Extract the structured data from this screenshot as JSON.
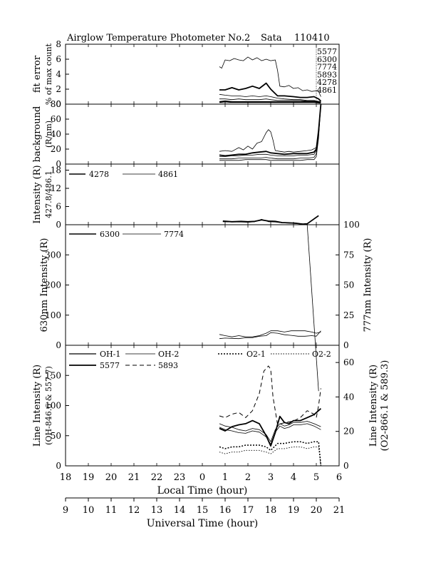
{
  "header": {
    "title": "Airglow Temperature Photometer No.2",
    "station": "Sata",
    "date": "110410"
  },
  "axes": {
    "local_time_label": "Local Time (hour)",
    "universal_time_label": "Universal Time (hour)",
    "local_ticks": [
      "18",
      "19",
      "20",
      "21",
      "22",
      "23",
      "0",
      "1",
      "2",
      "3",
      "4",
      "5",
      "6"
    ],
    "universal_ticks": [
      "9",
      "10",
      "11",
      "12",
      "13",
      "14",
      "15",
      "16",
      "17",
      "18",
      "19",
      "20",
      "21"
    ]
  },
  "chart_data": [
    {
      "type": "line",
      "panel": "fit-error",
      "ylabel": [
        "fit error",
        "% of max count"
      ],
      "ylim": [
        0,
        8
      ],
      "yticks": [
        0,
        2,
        4,
        6,
        8
      ],
      "legend": [
        "5577",
        "6300",
        "7774",
        "5893",
        "4278",
        "4861"
      ],
      "x_unit": "universal time hour",
      "series": [
        {
          "name": "5577",
          "style": "thin",
          "x": [
            15.75,
            15.85,
            16.0,
            16.2,
            16.4,
            16.6,
            16.8,
            17.0,
            17.2,
            17.4,
            17.6,
            17.8,
            18.0,
            18.2,
            18.3,
            18.4,
            18.6,
            18.8,
            19.0,
            19.2,
            19.4,
            19.6,
            19.8,
            20.0,
            20.1,
            20.2
          ],
          "y": [
            5.0,
            4.8,
            5.9,
            5.8,
            6.1,
            5.9,
            5.8,
            6.3,
            5.9,
            6.2,
            5.8,
            6.0,
            5.8,
            5.9,
            4.5,
            2.4,
            2.3,
            2.5,
            2.1,
            2.2,
            1.8,
            1.9,
            1.7,
            1.8,
            1.7,
            1.0
          ]
        },
        {
          "name": "5893",
          "style": "thick",
          "x": [
            15.75,
            16.0,
            16.3,
            16.6,
            16.9,
            17.2,
            17.5,
            17.8,
            18.0,
            18.3,
            18.6,
            19.0,
            19.3,
            19.6,
            19.9,
            20.1,
            20.2
          ],
          "y": [
            1.9,
            1.9,
            2.2,
            1.9,
            2.1,
            2.4,
            2.1,
            2.8,
            2.0,
            1.1,
            1.1,
            1.0,
            0.9,
            0.9,
            1.0,
            0.7,
            0.4
          ]
        },
        {
          "name": "6300",
          "style": "thin",
          "x": [
            15.75,
            16.0,
            16.3,
            16.6,
            16.9,
            17.2,
            17.5,
            17.8,
            18.0,
            18.3,
            18.6,
            19.0,
            19.3,
            19.6,
            19.9,
            20.2
          ],
          "y": [
            1.3,
            1.2,
            1.1,
            1.1,
            1.0,
            1.1,
            1.0,
            1.1,
            1.0,
            0.8,
            0.7,
            0.6,
            0.6,
            0.5,
            0.5,
            0.3
          ]
        },
        {
          "name": "7774",
          "style": "thin",
          "x": [
            15.75,
            16.0,
            16.3,
            16.6,
            16.9,
            17.2,
            17.5,
            17.8,
            18.0,
            18.3,
            18.6,
            19.0,
            19.3,
            19.6,
            19.9,
            20.2
          ],
          "y": [
            0.7,
            0.7,
            0.6,
            0.7,
            0.6,
            0.6,
            0.6,
            0.7,
            0.6,
            0.5,
            0.5,
            0.5,
            0.5,
            0.4,
            0.4,
            0.3
          ]
        },
        {
          "name": "4278",
          "style": "thick",
          "x": [
            15.75,
            16.0,
            16.3,
            16.6,
            16.9,
            17.2,
            17.5,
            17.8,
            18.0,
            18.3,
            18.6,
            19.0,
            19.3,
            19.6,
            19.9,
            20.2
          ],
          "y": [
            0.3,
            0.4,
            0.3,
            0.3,
            0.3,
            0.3,
            0.3,
            0.3,
            0.3,
            0.3,
            0.3,
            0.3,
            0.3,
            0.3,
            0.3,
            0.2
          ]
        },
        {
          "name": "4861",
          "style": "thin",
          "x": [
            15.75,
            16.0,
            16.3,
            16.6,
            16.9,
            17.2,
            17.5,
            17.8,
            18.0,
            18.3,
            18.6,
            19.0,
            19.3,
            19.6,
            19.9,
            20.2
          ],
          "y": [
            0.2,
            0.2,
            0.2,
            0.2,
            0.2,
            0.2,
            0.2,
            0.2,
            0.2,
            0.2,
            0.2,
            0.2,
            0.2,
            0.2,
            0.2,
            0.1
          ]
        }
      ]
    },
    {
      "type": "line",
      "panel": "background",
      "ylabel": [
        "background",
        "(R/nm)"
      ],
      "ylim": [
        0,
        80
      ],
      "yticks": [
        0,
        20,
        40,
        60,
        80
      ],
      "x_unit": "universal time hour",
      "series": [
        {
          "style": "thin",
          "x": [
            15.75,
            16.0,
            16.3,
            16.6,
            16.8,
            17.0,
            17.2,
            17.4,
            17.6,
            17.8,
            17.9,
            18.0,
            18.1,
            18.2,
            18.4,
            18.6,
            18.8,
            19.0,
            19.3,
            19.6,
            19.8,
            20.0,
            20.1,
            20.2
          ],
          "y": [
            17,
            18,
            17,
            22,
            19,
            24,
            20,
            28,
            30,
            42,
            46,
            43,
            32,
            18,
            17,
            16,
            17,
            16,
            17,
            18,
            19,
            22,
            40,
            80
          ]
        },
        {
          "style": "thick",
          "x": [
            15.75,
            16.0,
            16.3,
            16.6,
            16.9,
            17.2,
            17.5,
            17.8,
            18.0,
            18.3,
            18.6,
            19.0,
            19.3,
            19.6,
            19.9,
            20.0,
            20.1,
            20.2
          ],
          "y": [
            12,
            11,
            12,
            13,
            13,
            15,
            16,
            17,
            15,
            14,
            13,
            14,
            14,
            14,
            16,
            20,
            45,
            80
          ]
        },
        {
          "style": "thin",
          "x": [
            15.75,
            16.0,
            16.3,
            16.6,
            16.9,
            17.2,
            17.5,
            17.8,
            18.0,
            18.3,
            18.6,
            19.0,
            19.3,
            19.6,
            19.9,
            20.0,
            20.1,
            20.2
          ],
          "y": [
            10,
            10,
            11,
            11,
            12,
            12,
            13,
            13,
            12,
            11,
            11,
            11,
            12,
            12,
            13,
            18,
            40,
            80
          ]
        },
        {
          "style": "thin",
          "x": [
            15.75,
            16.0,
            16.3,
            16.6,
            16.9,
            17.2,
            17.5,
            17.8,
            18.0,
            18.3,
            18.6,
            19.0,
            19.3,
            19.6,
            19.9,
            20.0,
            20.1,
            20.2
          ],
          "y": [
            7,
            7,
            7,
            8,
            8,
            8,
            8,
            9,
            8,
            7,
            7,
            7,
            8,
            8,
            9,
            14,
            38,
            80
          ]
        },
        {
          "style": "thin",
          "x": [
            15.75,
            16.0,
            16.3,
            16.6,
            16.9,
            17.2,
            17.5,
            17.8,
            18.0,
            18.3,
            18.6,
            19.0,
            19.3,
            19.6,
            19.9,
            20.0,
            20.1,
            20.2
          ],
          "y": [
            5,
            5,
            5,
            5,
            6,
            6,
            6,
            6,
            5,
            5,
            5,
            5,
            5,
            6,
            6,
            10,
            35,
            80
          ]
        }
      ]
    },
    {
      "type": "line",
      "panel": "blue-intensity",
      "ylabel": [
        "Intensity (R)",
        "427.8/486.1"
      ],
      "ylim": [
        0,
        20
      ],
      "yticks": [
        0,
        6,
        12,
        18
      ],
      "legend": [
        "4278",
        "4861"
      ],
      "x_unit": "universal time hour",
      "series": [
        {
          "name": "4278",
          "style": "thick",
          "x": [
            15.9,
            16.3,
            16.7,
            17.0,
            17.3,
            17.6,
            17.9,
            18.2,
            18.5,
            18.8,
            19.1,
            19.4,
            19.6,
            20.1
          ],
          "y": [
            1.2,
            1.0,
            1.1,
            1.0,
            1.1,
            1.6,
            1.2,
            1.1,
            0.7,
            0.6,
            0.5,
            0.2,
            0.3,
            3.0
          ]
        },
        {
          "name": "4861",
          "style": "thin",
          "x": [
            15.9,
            16.3,
            16.7,
            17.0,
            17.3,
            17.6,
            17.9,
            18.2,
            18.5,
            18.8,
            19.1,
            19.4
          ],
          "y": [
            1.0,
            0.9,
            0.9,
            0.8,
            1.0,
            1.8,
            1.0,
            0.9,
            0.6,
            0.5,
            0.4,
            0.3
          ]
        }
      ]
    },
    {
      "type": "line",
      "panel": "red-intensity",
      "ylabel": "630nm Intensity (R)",
      "ylabel_right": "777nm Intensity (R)",
      "ylim": [
        0,
        400
      ],
      "yticks": [
        0,
        100,
        200,
        300
      ],
      "ylim_right": [
        0,
        100
      ],
      "yticks_right": [
        0,
        25,
        50,
        75,
        100
      ],
      "legend": [
        "6300",
        "7774"
      ],
      "x_unit": "universal time hour",
      "series": [
        {
          "name": "6300",
          "style": "thin",
          "x": [
            15.75,
            16.0,
            16.3,
            16.6,
            16.9,
            17.2,
            17.5,
            17.8,
            18.0,
            18.3,
            18.6,
            18.9,
            19.2,
            19.5,
            19.8,
            20.0,
            20.2
          ],
          "y": [
            22,
            24,
            23,
            22,
            25,
            25,
            30,
            32,
            42,
            40,
            35,
            33,
            30,
            30,
            32,
            30,
            48
          ]
        },
        {
          "name": "7774",
          "style": "thin",
          "axis": "right",
          "x": [
            15.75,
            16.0,
            16.3,
            16.6,
            16.9,
            17.2,
            17.5,
            17.8,
            18.0,
            18.3,
            18.6,
            18.9,
            19.2,
            19.5,
            19.8,
            20.0,
            20.2
          ],
          "y": [
            9,
            8,
            7,
            8,
            7,
            7,
            8,
            10,
            12,
            12,
            11,
            12,
            12,
            12,
            11,
            10,
            11
          ]
        },
        {
          "name": "7774-spike",
          "style": "thin",
          "axis": "right",
          "x": [
            19.6,
            20.1
          ],
          "y": [
            100,
            -38
          ]
        }
      ]
    },
    {
      "type": "line",
      "panel": "line-intensity",
      "ylabel": [
        "Line Intensity (R)",
        "(OH-846.6 & 557.7)"
      ],
      "ylabel_right": [
        "Line Intensity (R)",
        "(O2-866.1 & 589.3)"
      ],
      "ylim": [
        0,
        200
      ],
      "yticks": [
        0,
        50,
        100,
        150
      ],
      "ylim_right": [
        0,
        70
      ],
      "yticks_right": [
        0,
        20,
        40,
        60
      ],
      "legend": [
        "OH-1",
        "OH-2",
        "O2-1",
        "O2-2",
        "5577",
        "5893"
      ],
      "x_unit": "universal time hour",
      "series": [
        {
          "name": "5577",
          "style": "thick",
          "x": [
            15.75,
            16.0,
            16.3,
            16.6,
            16.9,
            17.2,
            17.5,
            17.8,
            18.0,
            18.2,
            18.4,
            18.6,
            18.8,
            19.0,
            19.3,
            19.6,
            19.9,
            20.2
          ],
          "y": [
            62,
            58,
            65,
            68,
            70,
            75,
            70,
            50,
            33,
            55,
            82,
            72,
            70,
            75,
            75,
            80,
            85,
            95
          ]
        },
        {
          "name": "OH-1",
          "style": "thin",
          "x": [
            15.75,
            16.0,
            16.3,
            16.6,
            16.9,
            17.2,
            17.5,
            17.8,
            18.0,
            18.2,
            18.4,
            18.6,
            18.8,
            19.0,
            19.3,
            19.6,
            19.9,
            20.2
          ],
          "y": [
            70,
            66,
            64,
            60,
            58,
            62,
            60,
            52,
            40,
            60,
            70,
            66,
            68,
            72,
            72,
            74,
            70,
            65
          ]
        },
        {
          "name": "OH-2",
          "style": "thin",
          "x": [
            15.75,
            16.0,
            16.3,
            16.6,
            16.9,
            17.2,
            17.5,
            17.8,
            18.0,
            18.2,
            18.4,
            18.6,
            18.8,
            19.0,
            19.3,
            19.6,
            19.9,
            20.2
          ],
          "y": [
            64,
            60,
            58,
            55,
            54,
            58,
            56,
            48,
            36,
            56,
            66,
            62,
            64,
            68,
            68,
            70,
            66,
            60
          ]
        },
        {
          "name": "5893",
          "style": "dashed",
          "axis": "right",
          "x": [
            15.75,
            16.0,
            16.3,
            16.6,
            16.9,
            17.2,
            17.5,
            17.7,
            17.9,
            18.0,
            18.1,
            18.3,
            18.6,
            19.0,
            19.3,
            19.6,
            19.9,
            20.0,
            20.1,
            20.2
          ],
          "y": [
            29,
            28,
            30,
            31,
            28,
            32,
            42,
            55,
            58,
            56,
            40,
            24,
            25,
            26,
            28,
            32,
            30,
            28,
            35,
            45
          ]
        },
        {
          "name": "O2-1",
          "style": "dotted-thick",
          "axis": "right",
          "x": [
            15.75,
            16.0,
            16.3,
            16.6,
            16.9,
            17.2,
            17.5,
            17.8,
            18.0,
            18.3,
            18.6,
            19.0,
            19.3,
            19.6,
            19.9,
            20.1,
            20.2
          ],
          "y": [
            11,
            10,
            11,
            11,
            12,
            12,
            12,
            11,
            9,
            13,
            13,
            14,
            14,
            13,
            14,
            14,
            0
          ]
        },
        {
          "name": "O2-2",
          "style": "dotted",
          "axis": "right",
          "x": [
            15.75,
            16.0,
            16.3,
            16.6,
            16.9,
            17.2,
            17.5,
            17.8,
            18.0,
            18.3,
            18.6,
            19.0,
            19.3,
            19.6,
            19.9,
            20.1,
            20.2
          ],
          "y": [
            8,
            7,
            8,
            8,
            9,
            9,
            9,
            8,
            7,
            10,
            10,
            11,
            11,
            10,
            11,
            11,
            0
          ]
        }
      ]
    }
  ]
}
